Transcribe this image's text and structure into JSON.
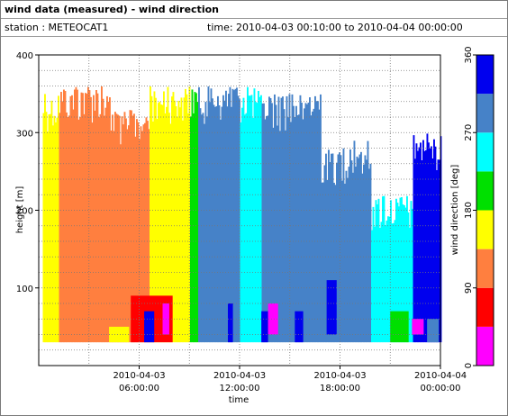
{
  "window": {
    "title": "wind data (measured) - wind direction",
    "station_text": "station : METEOCAT1",
    "time_range_text": "time: 2010-04-03 00:10:00 to 2010-04-04 00:00:00"
  },
  "chart_data": {
    "type": "heatmap",
    "title": "wind data (measured) - wind direction",
    "xlabel": "time",
    "ylabel": "height [m]",
    "x_unit": "hours since 2010-04-03 00:00:00",
    "xlim": [
      0,
      24
    ],
    "ylim": [
      0,
      400
    ],
    "grid": true,
    "x_ticks": [
      {
        "value": 6,
        "line1": "2010-04-03",
        "line2": "06:00:00"
      },
      {
        "value": 12,
        "line1": "2010-04-03",
        "line2": "12:00:00"
      },
      {
        "value": 18,
        "line1": "2010-04-03",
        "line2": "18:00:00"
      },
      {
        "value": 24,
        "line1": "2010-04-04",
        "line2": "00:00:00"
      }
    ],
    "y_ticks": [
      100,
      200,
      300,
      400
    ],
    "data_height_range": [
      30,
      360
    ],
    "colorbar": {
      "label": "wind direction [deg]",
      "ticks": [
        0,
        90,
        180,
        270,
        360
      ],
      "placement": "right",
      "bins": [
        {
          "from": 0,
          "to": 45,
          "color": "#ff00ff"
        },
        {
          "from": 45,
          "to": 90,
          "color": "#ff0000"
        },
        {
          "from": 90,
          "to": 135,
          "color": "#ff7f3f"
        },
        {
          "from": 135,
          "to": 180,
          "color": "#ffff00"
        },
        {
          "from": 180,
          "to": 225,
          "color": "#00e000"
        },
        {
          "from": 225,
          "to": 270,
          "color": "#00ffff"
        },
        {
          "from": 270,
          "to": 315,
          "color": "#4682c8"
        },
        {
          "from": 315,
          "to": 360,
          "color": "#0000ee"
        }
      ]
    },
    "segments": [
      {
        "t0": 0.17,
        "t1": 1.2,
        "dir": 157,
        "top": 350
      },
      {
        "t0": 1.2,
        "t1": 4.2,
        "dir": 112,
        "top": 360
      },
      {
        "t0": 4.2,
        "t1": 6.6,
        "dir": 112,
        "top": 330
      },
      {
        "t0": 6.6,
        "t1": 8.0,
        "dir": 157,
        "top": 360
      },
      {
        "t0": 8.0,
        "t1": 9.0,
        "dir": 157,
        "top": 360
      },
      {
        "t0": 9.0,
        "t1": 9.5,
        "dir": 202,
        "top": 360
      },
      {
        "t0": 9.5,
        "t1": 12.0,
        "dir": 292,
        "top": 360
      },
      {
        "t0": 12.0,
        "t1": 13.3,
        "dir": 247,
        "top": 360
      },
      {
        "t0": 13.3,
        "t1": 16.8,
        "dir": 292,
        "top": 350
      },
      {
        "t0": 16.8,
        "t1": 18.4,
        "dir": 292,
        "top": 280
      },
      {
        "t0": 18.4,
        "t1": 19.8,
        "dir": 292,
        "top": 290
      },
      {
        "t0": 19.8,
        "t1": 22.3,
        "dir": 247,
        "top": 220
      },
      {
        "t0": 22.3,
        "t1": 24.0,
        "dir": 337,
        "top": 300
      }
    ],
    "patches": [
      {
        "t0": 5.5,
        "t1": 8.0,
        "h0": 30,
        "h1": 90,
        "dir": 67
      },
      {
        "t0": 6.3,
        "t1": 6.9,
        "h0": 30,
        "h1": 70,
        "dir": 337
      },
      {
        "t0": 7.4,
        "t1": 7.8,
        "h0": 40,
        "h1": 80,
        "dir": 22
      },
      {
        "t0": 4.2,
        "t1": 5.4,
        "h0": 30,
        "h1": 50,
        "dir": 157
      },
      {
        "t0": 11.3,
        "t1": 11.6,
        "h0": 30,
        "h1": 80,
        "dir": 337
      },
      {
        "t0": 13.3,
        "t1": 13.7,
        "h0": 30,
        "h1": 70,
        "dir": 337
      },
      {
        "t0": 13.7,
        "t1": 14.3,
        "h0": 40,
        "h1": 80,
        "dir": 22
      },
      {
        "t0": 15.3,
        "t1": 15.8,
        "h0": 30,
        "h1": 70,
        "dir": 337
      },
      {
        "t0": 17.2,
        "t1": 17.8,
        "h0": 40,
        "h1": 110,
        "dir": 337
      },
      {
        "t0": 21.0,
        "t1": 22.1,
        "h0": 30,
        "h1": 70,
        "dir": 202
      },
      {
        "t0": 22.3,
        "t1": 23.0,
        "h0": 40,
        "h1": 60,
        "dir": 22
      },
      {
        "t0": 23.2,
        "t1": 23.9,
        "h0": 30,
        "h1": 60,
        "dir": 292
      }
    ]
  }
}
